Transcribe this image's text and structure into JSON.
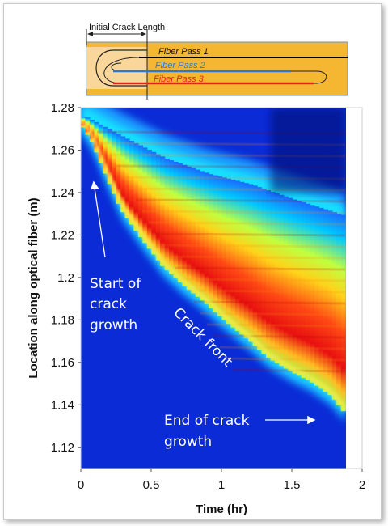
{
  "inset": {
    "crack_label": "Initial Crack Length",
    "passes": [
      {
        "label": "Fiber Pass 1",
        "color": "#000000"
      },
      {
        "label": "Fiber Pass 2",
        "color": "#2e78c7"
      },
      {
        "label": "Fiber Pass 3",
        "color": "#e0231b"
      }
    ],
    "panel_color": "#f5b731",
    "notch_color": "#f9d79b"
  },
  "annotations": {
    "start_line1": "Start of",
    "start_line2": "crack",
    "start_line3": "growth",
    "front": "Crack front",
    "end_line1": "End of crack",
    "end_line2": "growth"
  },
  "chart_data": {
    "type": "heatmap",
    "title": "",
    "xlabel": "Time (hr)",
    "ylabel": "Location along optical fiber (m)",
    "xlim": [
      0,
      2
    ],
    "ylim": [
      1.11,
      1.28
    ],
    "xticks": [
      "0",
      "0.5",
      "1",
      "1.5",
      "2"
    ],
    "yticks": [
      "1.12",
      "1.14",
      "1.16",
      "1.18",
      "1.2",
      "1.22",
      "1.24",
      "1.26",
      "1.28"
    ],
    "data_extent_x": [
      0,
      1.88
    ],
    "colormap": "jet",
    "background_color": "#0a2bd6",
    "crack_front": {
      "x": [
        0.02,
        0.1,
        0.2,
        0.3,
        0.45,
        0.6,
        0.75,
        0.9,
        1.05,
        1.2,
        1.35,
        1.5,
        1.65,
        1.8,
        1.88
      ],
      "y": [
        1.272,
        1.263,
        1.247,
        1.232,
        1.218,
        1.205,
        1.196,
        1.188,
        1.179,
        1.171,
        1.162,
        1.156,
        1.151,
        1.144,
        1.137
      ]
    },
    "peak_band_top": {
      "x": [
        0.02,
        0.3,
        0.6,
        0.9,
        1.2,
        1.5,
        1.88
      ],
      "y": [
        1.272,
        1.262,
        1.252,
        1.245,
        1.24,
        1.233,
        1.225
      ]
    }
  }
}
